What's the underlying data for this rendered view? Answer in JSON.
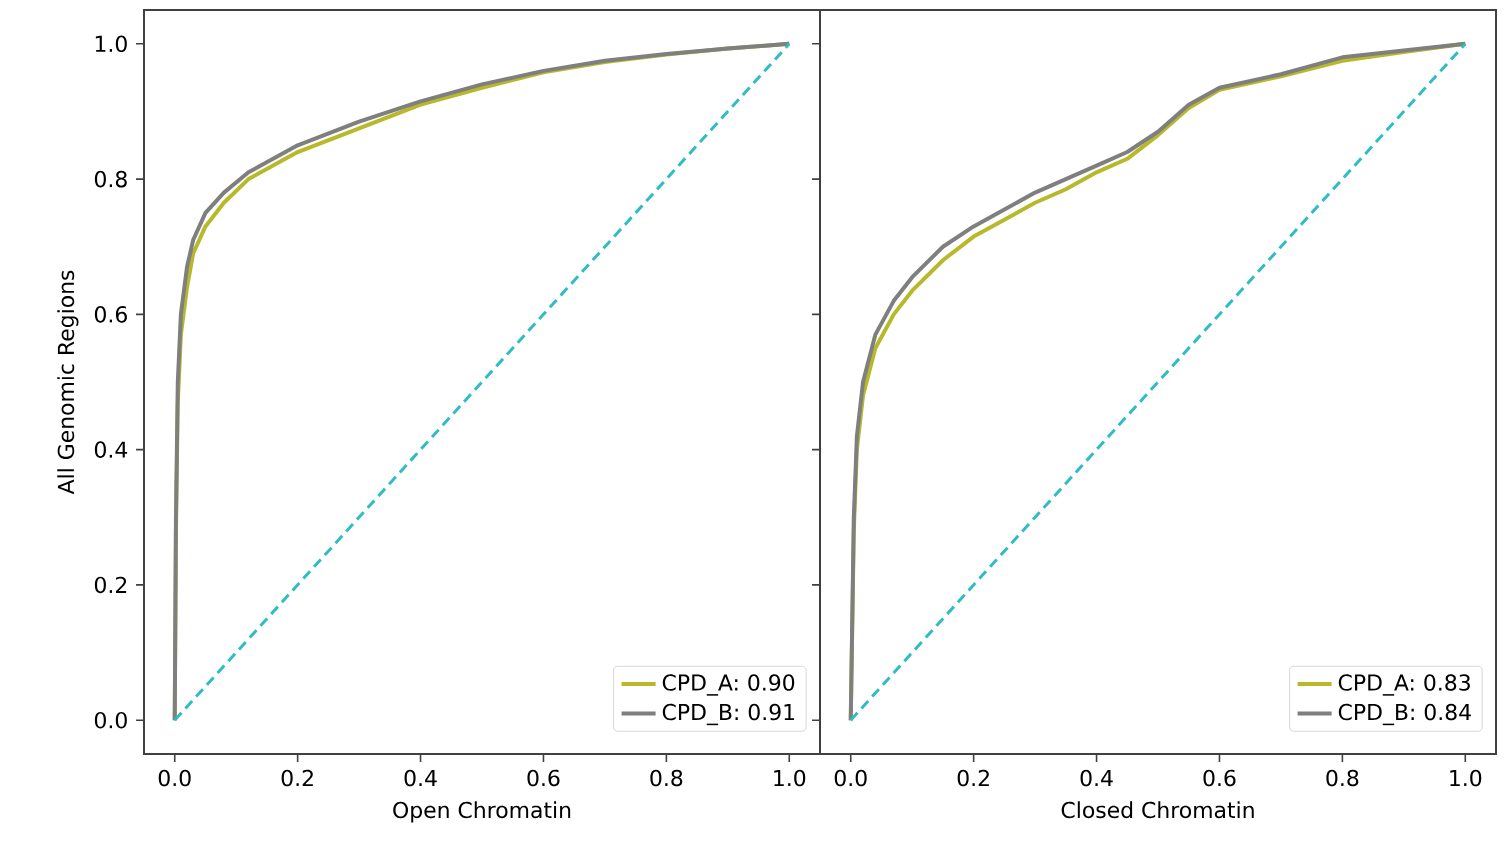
{
  "chart_data": [
    {
      "type": "line",
      "xlabel": "Open Chromatin",
      "ylabel": "All Genomic Regions",
      "xlim": [
        -0.05,
        1.05
      ],
      "ylim": [
        -0.05,
        1.05
      ],
      "xticks": [
        {
          "value": 0,
          "label": "0.0"
        },
        {
          "value": 0.2,
          "label": "0.2"
        },
        {
          "value": 0.4,
          "label": "0.4"
        },
        {
          "value": 0.6,
          "label": "0.6"
        },
        {
          "value": 0.8,
          "label": "0.8"
        },
        {
          "value": 1,
          "label": "1.0"
        }
      ],
      "yticks": [
        {
          "value": 0,
          "label": "0.0"
        },
        {
          "value": 0.2,
          "label": "0.2"
        },
        {
          "value": 0.4,
          "label": "0.4"
        },
        {
          "value": 0.6,
          "label": "0.6"
        },
        {
          "value": 0.8,
          "label": "0.8"
        },
        {
          "value": 1,
          "label": "1.0"
        }
      ],
      "legend": "bottom right",
      "grid": false,
      "series": [
        {
          "name": "CPD_A: 0.90",
          "color": "#b8b92a",
          "x": [
            0,
            0.002,
            0.005,
            0.01,
            0.02,
            0.03,
            0.05,
            0.08,
            0.12,
            0.2,
            0.3,
            0.4,
            0.5,
            0.6,
            0.7,
            0.8,
            0.9,
            1
          ],
          "values": [
            0,
            0.28,
            0.47,
            0.57,
            0.64,
            0.69,
            0.73,
            0.765,
            0.8,
            0.84,
            0.875,
            0.91,
            0.935,
            0.958,
            0.973,
            0.984,
            0.993,
            1
          ]
        },
        {
          "name": "CPD_B: 0.91",
          "color": "#7f7f7f",
          "x": [
            0,
            0.002,
            0.005,
            0.01,
            0.02,
            0.03,
            0.05,
            0.08,
            0.12,
            0.2,
            0.3,
            0.4,
            0.5,
            0.6,
            0.7,
            0.8,
            0.9,
            1
          ],
          "values": [
            0,
            0.3,
            0.5,
            0.6,
            0.67,
            0.71,
            0.75,
            0.78,
            0.81,
            0.85,
            0.885,
            0.915,
            0.94,
            0.96,
            0.975,
            0.985,
            0.993,
            1
          ]
        },
        {
          "color": "#2fbcc4",
          "line_style": "dashed",
          "x": [
            0,
            1
          ],
          "values": [
            0,
            1
          ]
        }
      ]
    },
    {
      "type": "line",
      "xlabel": "Closed Chromatin",
      "xlim": [
        -0.05,
        1.05
      ],
      "ylim": [
        -0.05,
        1.05
      ],
      "tick_labels": "x",
      "xticks": [
        {
          "value": 0,
          "label": "0.0"
        },
        {
          "value": 0.2,
          "label": "0.2"
        },
        {
          "value": 0.4,
          "label": "0.4"
        },
        {
          "value": 0.6,
          "label": "0.6"
        },
        {
          "value": 0.8,
          "label": "0.8"
        },
        {
          "value": 1,
          "label": "1.0"
        }
      ],
      "yticks": [
        {
          "value": 0,
          "label": null
        },
        {
          "value": 0.2,
          "label": null
        },
        {
          "value": 0.4,
          "label": null
        },
        {
          "value": 0.6,
          "label": null
        },
        {
          "value": 0.8,
          "label": null
        },
        {
          "value": 1,
          "label": null
        }
      ],
      "legend": "bottom right",
      "grid": false,
      "series": [
        {
          "name": "CPD_A: 0.83",
          "color": "#b8b92a",
          "x": [
            0,
            0.005,
            0.01,
            0.02,
            0.04,
            0.07,
            0.1,
            0.15,
            0.2,
            0.25,
            0.3,
            0.35,
            0.4,
            0.45,
            0.5,
            0.55,
            0.6,
            0.7,
            0.8,
            0.9,
            1
          ],
          "values": [
            0,
            0.28,
            0.4,
            0.48,
            0.55,
            0.6,
            0.635,
            0.68,
            0.715,
            0.74,
            0.765,
            0.785,
            0.81,
            0.83,
            0.865,
            0.905,
            0.932,
            0.952,
            0.975,
            0.988,
            1
          ]
        },
        {
          "name": "CPD_B: 0.84",
          "color": "#7f7f7f",
          "x": [
            0,
            0.005,
            0.01,
            0.02,
            0.04,
            0.07,
            0.1,
            0.15,
            0.2,
            0.25,
            0.3,
            0.35,
            0.4,
            0.45,
            0.5,
            0.55,
            0.6,
            0.7,
            0.8,
            0.9,
            1
          ],
          "values": [
            0,
            0.3,
            0.42,
            0.5,
            0.57,
            0.62,
            0.655,
            0.7,
            0.73,
            0.755,
            0.78,
            0.8,
            0.82,
            0.84,
            0.87,
            0.91,
            0.935,
            0.955,
            0.98,
            0.99,
            1
          ]
        },
        {
          "color": "#2fbcc4",
          "line_style": "dashed",
          "x": [
            0,
            1
          ],
          "values": [
            0,
            1
          ]
        }
      ]
    }
  ]
}
